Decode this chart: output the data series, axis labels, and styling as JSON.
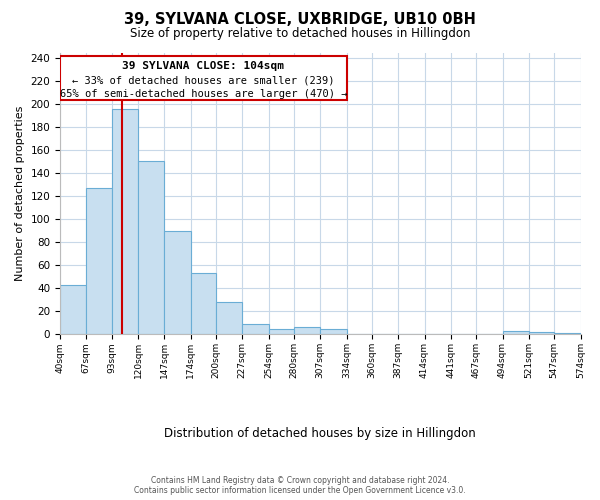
{
  "title": "39, SYLVANA CLOSE, UXBRIDGE, UB10 0BH",
  "subtitle": "Size of property relative to detached houses in Hillingdon",
  "xlabel": "Distribution of detached houses by size in Hillingdon",
  "ylabel": "Number of detached properties",
  "bar_edges": [
    40,
    67,
    93,
    120,
    147,
    174,
    200,
    227,
    254,
    280,
    307,
    334,
    360,
    387,
    414,
    441,
    467,
    494,
    521,
    547,
    574
  ],
  "bar_heights": [
    43,
    127,
    196,
    151,
    90,
    53,
    28,
    9,
    5,
    6,
    5,
    0,
    0,
    0,
    0,
    0,
    0,
    3,
    2,
    1
  ],
  "bar_color": "#c8dff0",
  "bar_edge_color": "#6aadd5",
  "property_line_x": 104,
  "property_label": "39 SYLVANA CLOSE: 104sqm",
  "smaller_pct": "33%",
  "smaller_count": 239,
  "larger_pct": "65%",
  "larger_count": 470,
  "annotation_box_color": "#ffffff",
  "annotation_box_edge": "#cc0000",
  "property_line_color": "#cc0000",
  "ylim": [
    0,
    245
  ],
  "yticks": [
    0,
    20,
    40,
    60,
    80,
    100,
    120,
    140,
    160,
    180,
    200,
    220,
    240
  ],
  "tick_labels": [
    "40sqm",
    "67sqm",
    "93sqm",
    "120sqm",
    "147sqm",
    "174sqm",
    "200sqm",
    "227sqm",
    "254sqm",
    "280sqm",
    "307sqm",
    "334sqm",
    "360sqm",
    "387sqm",
    "414sqm",
    "441sqm",
    "467sqm",
    "494sqm",
    "521sqm",
    "547sqm",
    "574sqm"
  ],
  "footer_line1": "Contains HM Land Registry data © Crown copyright and database right 2024.",
  "footer_line2": "Contains public sector information licensed under the Open Government Licence v3.0.",
  "background_color": "#ffffff",
  "grid_color": "#c8d8e8"
}
